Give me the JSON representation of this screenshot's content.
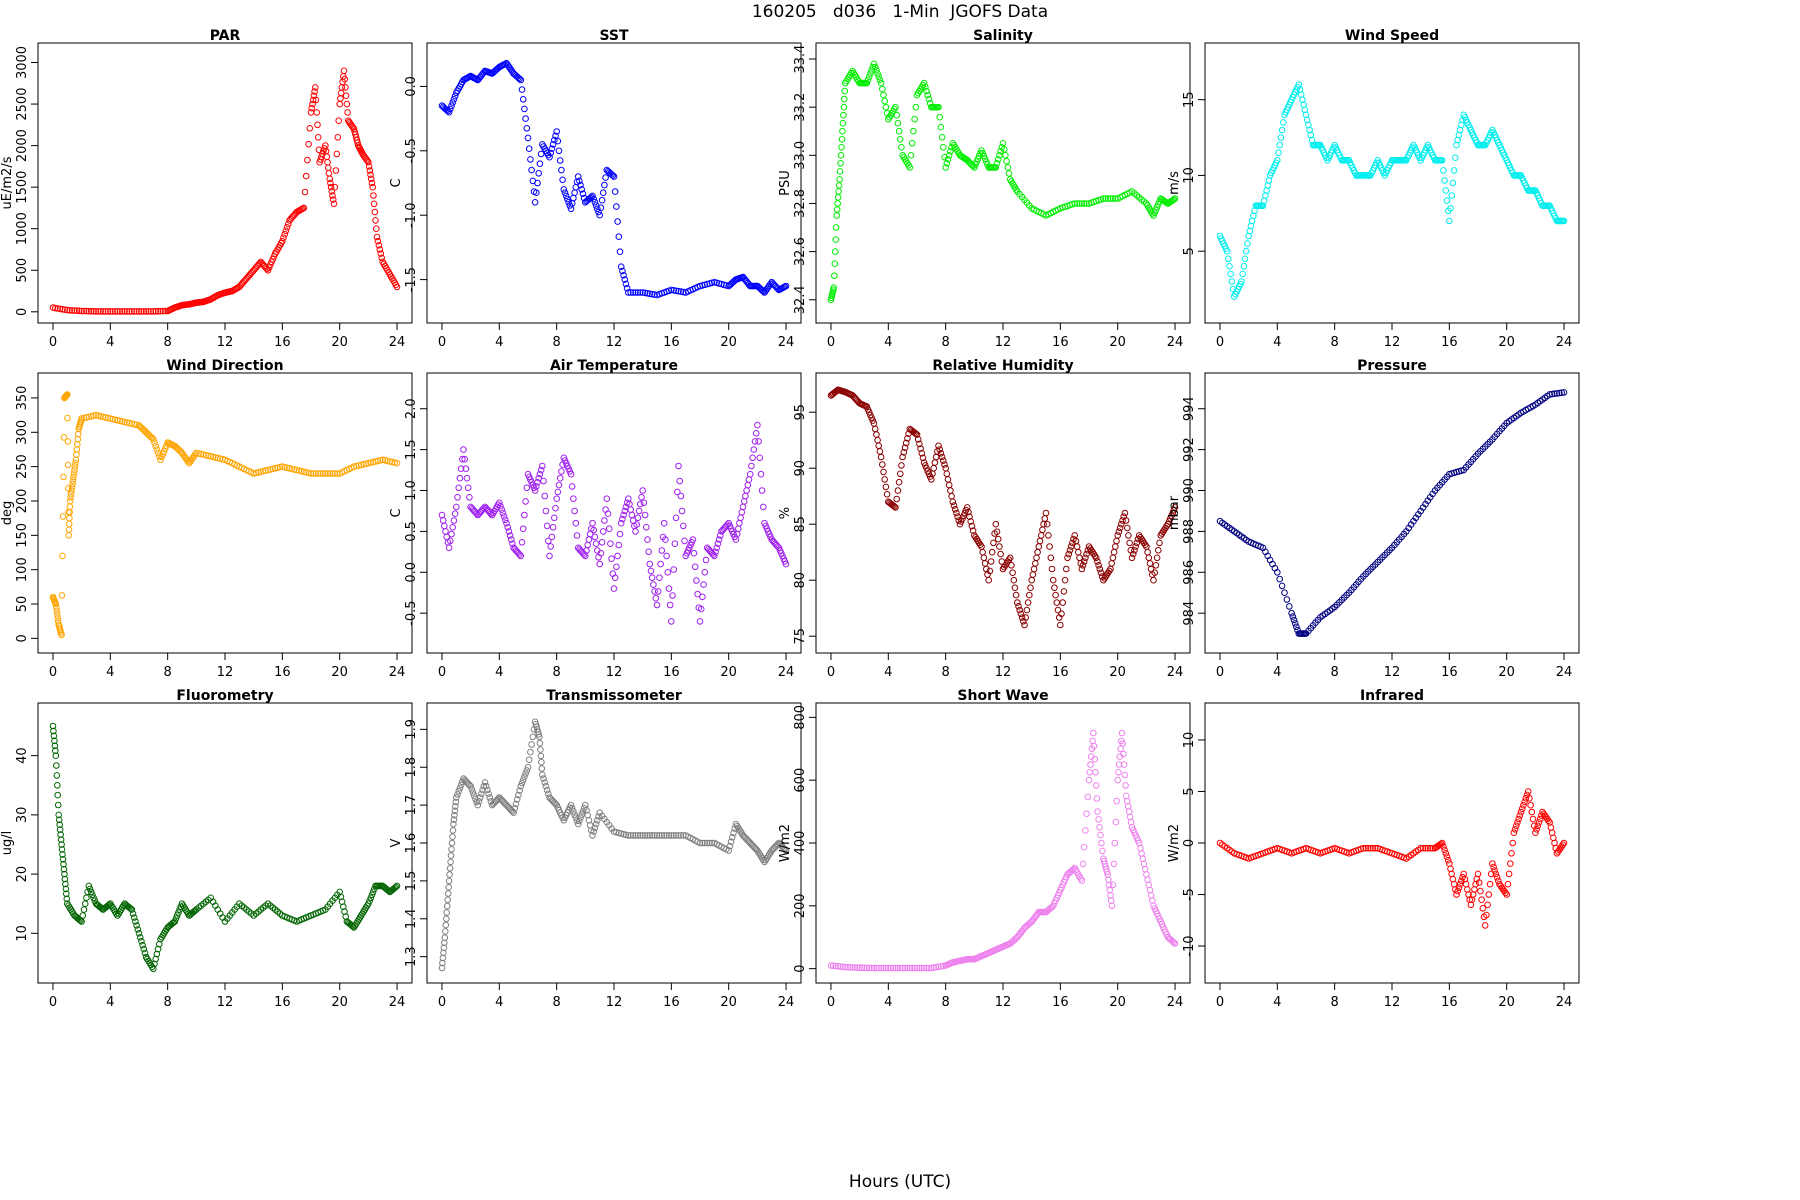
{
  "page": {
    "title": "160205   d036   1-Min  JGOFS Data",
    "xlabel": "Hours (UTC)"
  },
  "chart_data": [
    {
      "type": "scatter",
      "title": "PAR",
      "ylabel": "uE/m2/s",
      "color": "#ff0000",
      "xlim": [
        0,
        24
      ],
      "ylim": [
        0,
        3100
      ],
      "xticks": [
        0,
        4,
        8,
        12,
        16,
        20,
        24
      ],
      "yticks": [
        0,
        500,
        1000,
        1500,
        2000,
        2500,
        3000
      ],
      "x": [
        0,
        1,
        2,
        3,
        4,
        5,
        6,
        7,
        8,
        8.5,
        9,
        9.5,
        10,
        10.5,
        11,
        11.5,
        12,
        12.5,
        13,
        13.5,
        14,
        14.5,
        15,
        15.5,
        16,
        16.5,
        17,
        17.5,
        18,
        18.3,
        18.6,
        19,
        19.3,
        19.6,
        20,
        20.3,
        20.6,
        21,
        21.3,
        21.6,
        22,
        22.3,
        22.6,
        23,
        23.5,
        24
      ],
      "y": [
        50,
        20,
        10,
        5,
        5,
        5,
        5,
        5,
        10,
        50,
        80,
        90,
        110,
        120,
        150,
        200,
        230,
        250,
        300,
        400,
        500,
        600,
        500,
        700,
        850,
        1100,
        1200,
        1250,
        2400,
        2700,
        1800,
        2000,
        1600,
        1300,
        2500,
        2900,
        2300,
        2200,
        2000,
        1900,
        1800,
        1500,
        900,
        600,
        450,
        300
      ]
    },
    {
      "type": "scatter",
      "title": "SST",
      "ylabel": "C",
      "color": "#0000ff",
      "xlim": [
        0,
        24
      ],
      "ylim": [
        -1.75,
        0.25
      ],
      "xticks": [
        0,
        4,
        8,
        12,
        16,
        20,
        24
      ],
      "yticks": [
        -1.5,
        -1,
        -0.5,
        0
      ],
      "ytick_labels": [
        "-1.5",
        "-1.0",
        "-0.5",
        "0.0"
      ],
      "x": [
        0,
        0.5,
        1,
        1.5,
        2,
        2.5,
        3,
        3.5,
        4,
        4.5,
        5,
        5.5,
        6,
        6.5,
        7,
        7.5,
        8,
        8.5,
        9,
        9.5,
        10,
        10.5,
        11,
        11.5,
        12,
        12.5,
        13,
        14,
        15,
        16,
        17,
        18,
        19,
        20,
        20.5,
        21,
        21.5,
        22,
        22.5,
        23,
        23.5,
        24
      ],
      "y": [
        -0.15,
        -0.2,
        -0.05,
        0.05,
        0.08,
        0.05,
        0.12,
        0.1,
        0.15,
        0.18,
        0.1,
        0.05,
        -0.4,
        -0.9,
        -0.45,
        -0.55,
        -0.35,
        -0.8,
        -0.95,
        -0.7,
        -0.9,
        -0.85,
        -1.0,
        -0.65,
        -0.7,
        -1.4,
        -1.6,
        -1.6,
        -1.62,
        -1.58,
        -1.6,
        -1.55,
        -1.52,
        -1.55,
        -1.5,
        -1.48,
        -1.55,
        -1.55,
        -1.6,
        -1.52,
        -1.58,
        -1.55
      ]
    },
    {
      "type": "scatter",
      "title": "Salinity",
      "ylabel": "PSU",
      "color": "#00ee00",
      "xlim": [
        0,
        24
      ],
      "ylim": [
        32.35,
        33.42
      ],
      "xticks": [
        0,
        4,
        8,
        12,
        16,
        20,
        24
      ],
      "yticks": [
        32.4,
        32.6,
        32.8,
        33,
        33.2,
        33.4
      ],
      "ytick_labels": [
        "32.4",
        "32.6",
        "32.8",
        "33.0",
        "33.2",
        "33.4"
      ],
      "x": [
        0,
        0.2,
        0.4,
        0.6,
        0.8,
        1,
        1.5,
        2,
        2.5,
        3,
        3.5,
        4,
        4.5,
        5,
        5.5,
        6,
        6.5,
        7,
        7.5,
        8,
        8.5,
        9,
        9.5,
        10,
        10.5,
        11,
        11.5,
        12,
        12.5,
        13,
        14,
        15,
        16,
        17,
        18,
        19,
        20,
        21,
        22,
        22.5,
        23,
        23.5,
        24
      ],
      "y": [
        32.4,
        32.45,
        32.75,
        32.9,
        33.1,
        33.3,
        33.35,
        33.3,
        33.3,
        33.38,
        33.3,
        33.15,
        33.2,
        33.0,
        32.95,
        33.25,
        33.3,
        33.2,
        33.2,
        32.95,
        33.05,
        33.0,
        32.98,
        32.95,
        33.02,
        32.95,
        32.95,
        33.05,
        32.9,
        32.85,
        32.78,
        32.75,
        32.78,
        32.8,
        32.8,
        32.82,
        32.82,
        32.85,
        32.8,
        32.75,
        32.82,
        32.8,
        32.82
      ]
    },
    {
      "type": "scatter",
      "title": "Wind Speed",
      "ylabel": "m/s",
      "color": "#00eeee",
      "xlim": [
        0,
        24
      ],
      "ylim": [
        1,
        18
      ],
      "xticks": [
        0,
        4,
        8,
        12,
        16,
        20,
        24
      ],
      "yticks": [
        5,
        10,
        15
      ],
      "x": [
        0,
        0.5,
        1,
        1.5,
        2,
        2.5,
        3,
        3.5,
        4,
        4.5,
        5,
        5.5,
        6,
        6.5,
        7,
        7.5,
        8,
        8.5,
        9,
        9.5,
        10,
        10.5,
        11,
        11.5,
        12,
        12.5,
        13,
        13.5,
        14,
        14.5,
        15,
        15.5,
        16,
        16.5,
        17,
        17.5,
        18,
        18.5,
        19,
        19.5,
        20,
        20.5,
        21,
        21.5,
        22,
        22.5,
        23,
        23.5,
        24
      ],
      "y": [
        6,
        5,
        2,
        3,
        6,
        8,
        8,
        10,
        11,
        14,
        15,
        16,
        14,
        12,
        12,
        11,
        12,
        11,
        11,
        10,
        10,
        10,
        11,
        10,
        11,
        11,
        11,
        12,
        11,
        12,
        11,
        11,
        7,
        12,
        14,
        13,
        12,
        12,
        13,
        12,
        11,
        10,
        10,
        9,
        9,
        8,
        8,
        7,
        7
      ]
    },
    {
      "type": "scatter",
      "title": "Wind Direction",
      "ylabel": "deg",
      "color": "#ffa500",
      "xlim": [
        0,
        24
      ],
      "ylim": [
        -5,
        370
      ],
      "xticks": [
        0,
        4,
        8,
        12,
        16,
        20,
        24
      ],
      "yticks": [
        0,
        50,
        100,
        150,
        200,
        250,
        300,
        350
      ],
      "x": [
        0,
        0.2,
        0.4,
        0.6,
        0.8,
        1,
        1.1,
        1.2,
        1.4,
        1.6,
        1.8,
        2,
        3,
        4,
        5,
        6,
        6.5,
        7,
        7.5,
        8,
        8.5,
        9,
        9.5,
        10,
        11,
        12,
        13,
        14,
        15,
        16,
        17,
        18,
        19,
        20,
        21,
        22,
        23,
        24
      ],
      "y": [
        60,
        50,
        20,
        5,
        350,
        355,
        150,
        200,
        230,
        260,
        305,
        320,
        325,
        320,
        315,
        310,
        300,
        290,
        260,
        285,
        280,
        270,
        255,
        270,
        265,
        260,
        250,
        240,
        245,
        250,
        245,
        240,
        240,
        240,
        250,
        255,
        260,
        255
      ]
    },
    {
      "type": "scatter",
      "title": "Air Temperature",
      "ylabel": "C",
      "color": "#a020f0",
      "xlim": [
        0,
        24
      ],
      "ylim": [
        -0.85,
        2.3
      ],
      "xticks": [
        0,
        4,
        8,
        12,
        16,
        20,
        24
      ],
      "yticks": [
        -0.5,
        0,
        0.5,
        1,
        1.5,
        2
      ],
      "ytick_labels": [
        "-0.5",
        "0.0",
        "0.5",
        "1.0",
        "1.5",
        "2.0"
      ],
      "x": [
        0,
        0.5,
        1,
        1.5,
        2,
        2.5,
        3,
        3.5,
        4,
        4.5,
        5,
        5.5,
        6,
        6.5,
        7,
        7.5,
        8,
        8.5,
        9,
        9.5,
        10,
        10.5,
        11,
        11.5,
        12,
        12.5,
        13,
        13.5,
        14,
        14.5,
        15,
        15.5,
        16,
        16.5,
        17,
        17.5,
        18,
        18.5,
        19,
        19.5,
        20,
        20.5,
        21,
        21.5,
        22,
        22.5,
        23,
        23.5,
        24
      ],
      "y": [
        0.7,
        0.3,
        0.8,
        1.5,
        0.8,
        0.7,
        0.8,
        0.7,
        0.85,
        0.6,
        0.3,
        0.2,
        1.2,
        1.0,
        1.3,
        0.2,
        0.9,
        1.4,
        1.2,
        0.3,
        0.2,
        0.6,
        0.1,
        0.9,
        -0.2,
        0.6,
        0.9,
        0.5,
        1.0,
        0.1,
        -0.4,
        0.6,
        -0.6,
        1.3,
        0.2,
        0.4,
        -0.6,
        0.3,
        0.2,
        0.5,
        0.6,
        0.4,
        0.8,
        1.2,
        1.8,
        0.6,
        0.4,
        0.3,
        0.1
      ]
    },
    {
      "type": "scatter",
      "title": "Relative Humidity",
      "ylabel": "%",
      "color": "#8b0000",
      "xlim": [
        0,
        24
      ],
      "ylim": [
        74.5,
        97.5
      ],
      "xticks": [
        0,
        4,
        8,
        12,
        16,
        20,
        24
      ],
      "yticks": [
        75,
        80,
        85,
        90,
        95
      ],
      "x": [
        0,
        0.5,
        1,
        1.5,
        2,
        2.5,
        3,
        3.5,
        4,
        4.5,
        5,
        5.5,
        6,
        6.5,
        7,
        7.5,
        8,
        8.5,
        9,
        9.5,
        10,
        10.5,
        11,
        11.5,
        12,
        12.5,
        13,
        13.5,
        14,
        14.5,
        15,
        15.5,
        16,
        16.5,
        17,
        17.5,
        18,
        18.5,
        19,
        19.5,
        20,
        20.5,
        21,
        21.5,
        22,
        22.5,
        23,
        23.5,
        24
      ],
      "y": [
        96.5,
        97,
        96.8,
        96.5,
        95.8,
        95.5,
        94,
        91,
        87,
        86.5,
        91,
        93.5,
        93,
        90.5,
        89,
        92,
        90,
        87,
        85,
        86.5,
        84,
        83,
        80,
        85,
        81,
        82,
        78,
        76,
        80,
        83,
        86,
        80,
        76,
        82,
        84,
        81,
        83,
        82,
        80,
        81,
        84,
        86,
        82,
        84,
        83,
        80,
        84,
        85,
        86.5
      ]
    },
    {
      "type": "scatter",
      "title": "Pressure",
      "ylabel": "mbar",
      "color": "#000080",
      "xlim": [
        0,
        24
      ],
      "ylim": [
        982.6,
        995.2
      ],
      "xticks": [
        0,
        4,
        8,
        12,
        16,
        20,
        24
      ],
      "yticks": [
        984,
        986,
        988,
        990,
        992,
        994
      ],
      "x": [
        0,
        1,
        2,
        3,
        4,
        5,
        5.5,
        6,
        7,
        8,
        9,
        10,
        11,
        12,
        13,
        14,
        15,
        16,
        17,
        18,
        19,
        20,
        21,
        22,
        23,
        24
      ],
      "y": [
        988.5,
        988,
        987.5,
        987.2,
        986,
        984,
        983,
        983,
        983.8,
        984.3,
        985,
        985.8,
        986.5,
        987.2,
        988,
        989,
        990,
        990.8,
        991,
        991.8,
        992.5,
        993.3,
        993.8,
        994.2,
        994.7,
        994.8
      ]
    },
    {
      "type": "scatter",
      "title": "Fluorometry",
      "ylabel": "ug/l",
      "color": "#006400",
      "xlim": [
        0,
        24
      ],
      "ylim": [
        3.5,
        47
      ],
      "xticks": [
        0,
        4,
        8,
        12,
        16,
        20,
        24
      ],
      "yticks": [
        10,
        20,
        30,
        40
      ],
      "x": [
        0,
        0.2,
        0.4,
        0.6,
        0.8,
        1,
        1.5,
        2,
        2.5,
        3,
        3.5,
        4,
        4.5,
        5,
        5.5,
        6,
        6.5,
        7,
        7.5,
        8,
        8.5,
        9,
        9.5,
        10,
        11,
        12,
        13,
        14,
        15,
        16,
        17,
        18,
        19,
        20,
        20.5,
        21,
        21.5,
        22,
        22.5,
        23,
        23.5,
        24
      ],
      "y": [
        45,
        40,
        30,
        25,
        20,
        15,
        13,
        12,
        18,
        15,
        14,
        15,
        13,
        15,
        14,
        10,
        6,
        4,
        9,
        11,
        12,
        15,
        13,
        14,
        16,
        12,
        15,
        13,
        15,
        13,
        12,
        13,
        14,
        17,
        12,
        11,
        13,
        15,
        18,
        18,
        17,
        18
      ]
    },
    {
      "type": "scatter",
      "title": "Transmissometer",
      "ylabel": "V",
      "color": "#808080",
      "xlim": [
        0,
        24
      ],
      "ylim": [
        1.26,
        1.94
      ],
      "xticks": [
        0,
        4,
        8,
        12,
        16,
        20,
        24
      ],
      "yticks": [
        1.3,
        1.4,
        1.5,
        1.6,
        1.7,
        1.8,
        1.9
      ],
      "x": [
        0,
        0.2,
        0.4,
        0.6,
        0.8,
        1,
        1.5,
        2,
        2.5,
        3,
        3.5,
        4,
        4.5,
        5,
        5.5,
        6,
        6.5,
        6.8,
        7,
        7.5,
        8,
        8.5,
        9,
        9.5,
        10,
        10.5,
        11,
        12,
        13,
        14,
        15,
        16,
        17,
        18,
        19,
        20,
        20.5,
        21,
        21.5,
        22,
        22.5,
        23,
        23.5,
        24
      ],
      "y": [
        1.27,
        1.35,
        1.45,
        1.55,
        1.65,
        1.72,
        1.77,
        1.75,
        1.7,
        1.76,
        1.7,
        1.72,
        1.7,
        1.68,
        1.75,
        1.8,
        1.92,
        1.88,
        1.78,
        1.72,
        1.7,
        1.66,
        1.7,
        1.65,
        1.7,
        1.62,
        1.68,
        1.63,
        1.62,
        1.62,
        1.62,
        1.62,
        1.62,
        1.6,
        1.6,
        1.58,
        1.65,
        1.62,
        1.6,
        1.58,
        1.55,
        1.58,
        1.6,
        1.58
      ]
    },
    {
      "type": "scatter",
      "title": "Short Wave",
      "ylabel": "W/m2",
      "color": "#ee82ee",
      "xlim": [
        0,
        24
      ],
      "ylim": [
        -10,
        810
      ],
      "xticks": [
        0,
        4,
        8,
        12,
        16,
        20,
        24
      ],
      "yticks": [
        0,
        200,
        400,
        600,
        800
      ],
      "x": [
        0,
        1,
        2,
        3,
        4,
        5,
        6,
        7,
        8,
        8.5,
        9,
        9.5,
        10,
        10.5,
        11,
        11.5,
        12,
        12.5,
        13,
        13.5,
        14,
        14.5,
        15,
        15.5,
        16,
        16.5,
        17,
        17.5,
        18,
        18.3,
        18.6,
        19,
        19.3,
        19.6,
        20,
        20.3,
        20.6,
        21,
        21.5,
        22,
        22.5,
        23,
        23.5,
        24
      ],
      "y": [
        10,
        5,
        3,
        2,
        2,
        2,
        2,
        2,
        10,
        20,
        25,
        30,
        30,
        40,
        50,
        60,
        70,
        80,
        100,
        130,
        150,
        180,
        180,
        200,
        250,
        300,
        320,
        280,
        600,
        750,
        500,
        350,
        300,
        200,
        600,
        750,
        550,
        450,
        400,
        300,
        200,
        150,
        100,
        80
      ]
    },
    {
      "type": "scatter",
      "title": "Infrared",
      "ylabel": "W/m2",
      "color": "#ff0000",
      "xlim": [
        0,
        24
      ],
      "ylim": [
        -12.5,
        12.5
      ],
      "xticks": [
        0,
        4,
        8,
        12,
        16,
        20,
        24
      ],
      "yticks": [
        -10,
        -5,
        0,
        5,
        10
      ],
      "x": [
        0,
        1,
        2,
        3,
        4,
        5,
        6,
        7,
        8,
        9,
        10,
        11,
        12,
        13,
        14,
        15,
        15.5,
        16,
        16.5,
        17,
        17.5,
        18,
        18.5,
        19,
        19.5,
        20,
        20.5,
        21,
        21.5,
        22,
        22.5,
        23,
        23.5,
        24
      ],
      "y": [
        0,
        -1,
        -1.5,
        -1,
        -0.5,
        -1,
        -0.5,
        -1,
        -0.5,
        -1,
        -0.5,
        -0.5,
        -1,
        -1.5,
        -0.5,
        -0.5,
        0,
        -2,
        -5,
        -3,
        -6,
        -3,
        -8,
        -2,
        -4,
        -5,
        1,
        3,
        5,
        1,
        3,
        2,
        -1,
        0
      ]
    }
  ]
}
